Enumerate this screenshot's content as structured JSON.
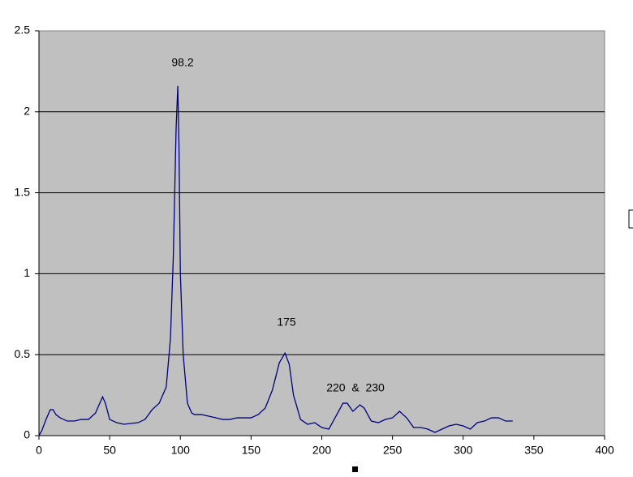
{
  "chart_data": {
    "type": "line",
    "color": "#000080",
    "x": [
      0,
      2,
      5,
      8,
      10,
      12,
      15,
      20,
      25,
      30,
      35,
      40,
      43,
      45,
      47,
      50,
      55,
      60,
      65,
      70,
      75,
      80,
      85,
      90,
      93,
      95,
      97,
      98.2,
      99,
      100,
      102,
      105,
      108,
      110,
      115,
      120,
      125,
      130,
      135,
      140,
      145,
      150,
      155,
      160,
      165,
      170,
      174,
      177,
      180,
      185,
      190,
      195,
      200,
      205,
      210,
      215,
      218,
      222,
      227,
      230,
      235,
      240,
      245,
      250,
      255,
      260,
      265,
      270,
      275,
      280,
      285,
      290,
      295,
      300,
      305,
      310,
      315,
      320,
      325,
      330,
      335
    ],
    "values": [
      0,
      0.03,
      0.1,
      0.16,
      0.16,
      0.13,
      0.11,
      0.09,
      0.09,
      0.1,
      0.1,
      0.14,
      0.2,
      0.24,
      0.2,
      0.1,
      0.08,
      0.07,
      0.075,
      0.08,
      0.1,
      0.16,
      0.2,
      0.3,
      0.6,
      1.1,
      1.9,
      2.16,
      1.8,
      1.0,
      0.5,
      0.2,
      0.14,
      0.13,
      0.13,
      0.12,
      0.11,
      0.1,
      0.1,
      0.11,
      0.11,
      0.11,
      0.13,
      0.17,
      0.28,
      0.45,
      0.51,
      0.44,
      0.25,
      0.1,
      0.07,
      0.08,
      0.05,
      0.04,
      0.12,
      0.2,
      0.2,
      0.15,
      0.19,
      0.17,
      0.09,
      0.08,
      0.1,
      0.11,
      0.15,
      0.11,
      0.05,
      0.05,
      0.04,
      0.02,
      0.04,
      0.06,
      0.07,
      0.06,
      0.04,
      0.08,
      0.09,
      0.11,
      0.11,
      0.09,
      0.09
    ],
    "xlim": [
      0,
      400
    ],
    "xticks": [
      0,
      50,
      100,
      150,
      200,
      250,
      300,
      350,
      400
    ],
    "ylim": [
      0,
      2.5
    ],
    "yticks": [
      0,
      0.5,
      1,
      1.5,
      2,
      2.5
    ],
    "grid": true,
    "annotations": [
      "98.2",
      "175",
      "220  &  230"
    ]
  }
}
